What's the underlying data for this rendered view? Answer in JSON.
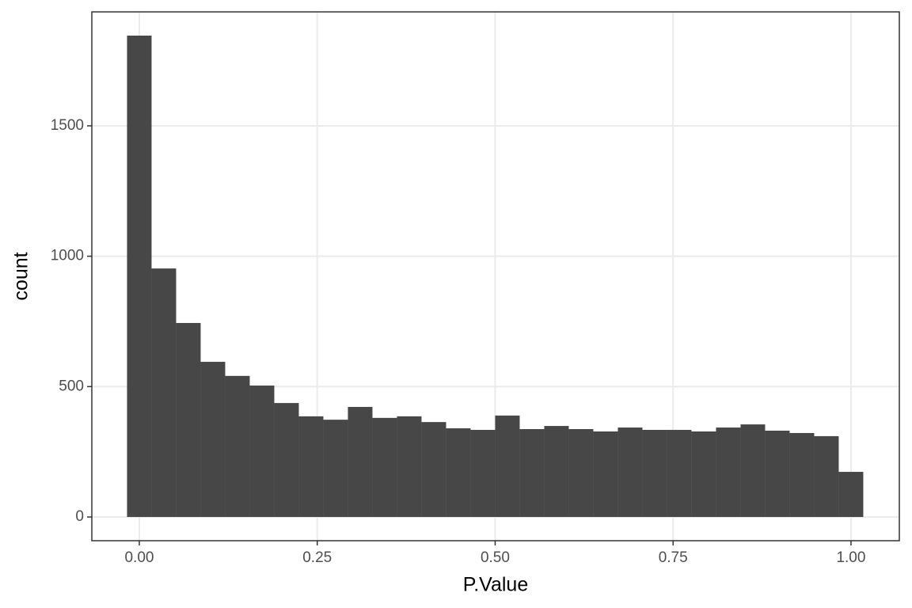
{
  "chart_data": {
    "type": "histogram",
    "x_label": "P.Value",
    "y_label": "count",
    "bins": [
      -0.01724,
      0.01724,
      0.05172,
      0.08621,
      0.12069,
      0.15517,
      0.18966,
      0.22414,
      0.25862,
      0.2931,
      0.32759,
      0.36207,
      0.39655,
      0.43103,
      0.46552,
      0.5,
      0.53448,
      0.56897,
      0.60345,
      0.63793,
      0.67241,
      0.7069,
      0.74138,
      0.77586,
      0.81034,
      0.84483,
      0.87931,
      0.91379,
      0.94828,
      0.98276,
      1.01724
    ],
    "values": [
      1846,
      953,
      744,
      595,
      541,
      504,
      437,
      386,
      373,
      422,
      380,
      386,
      364,
      340,
      334,
      389,
      337,
      349,
      337,
      328,
      343,
      334,
      334,
      328,
      343,
      355,
      331,
      322,
      310,
      173
    ],
    "color": "#474747",
    "xlim": [
      -0.0667,
      1.0679
    ],
    "ylim": [
      -91,
      1937
    ],
    "xticks": [
      {
        "value": 0,
        "label": "0.00"
      },
      {
        "value": 0.25,
        "label": "0.25"
      },
      {
        "value": 0.5,
        "label": "0.50"
      },
      {
        "value": 0.75,
        "label": "0.75"
      },
      {
        "value": 1,
        "label": "1.00"
      }
    ],
    "yticks": [
      0,
      500,
      1000,
      1500
    ],
    "grid": true
  }
}
